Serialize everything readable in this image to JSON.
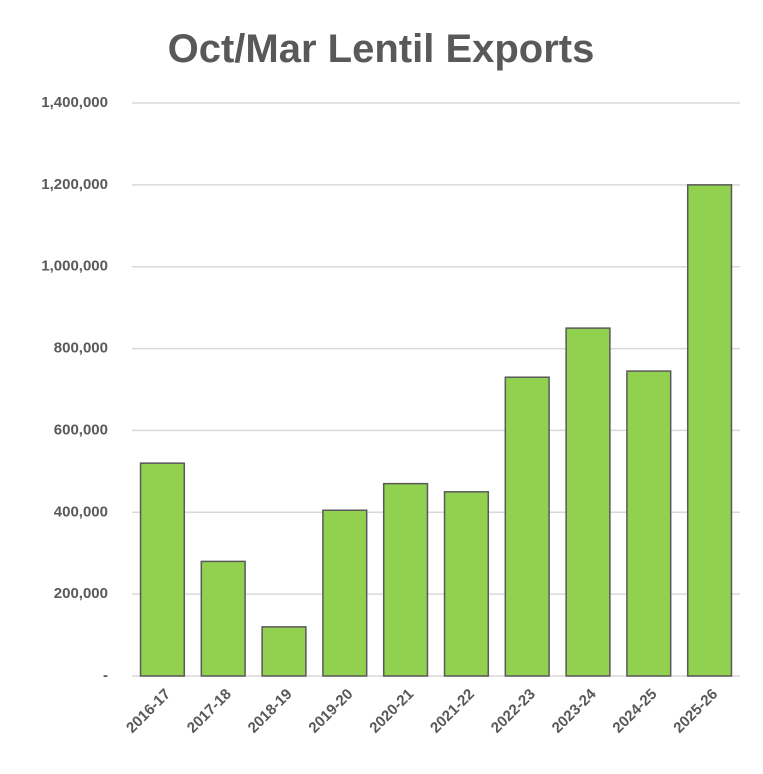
{
  "chart_data": {
    "type": "bar",
    "title": "Oct/Mar Lentil Exports",
    "categories": [
      "2016-17",
      "2017-18",
      "2018-19",
      "2019-20",
      "2020-21",
      "2021-22",
      "2022-23",
      "2023-24",
      "2024-25",
      "2025-26"
    ],
    "values": [
      520000,
      280000,
      120000,
      405000,
      470000,
      450000,
      730000,
      850000,
      745000,
      1200000
    ],
    "color": "#92d050",
    "ylim": [
      0,
      1400000
    ],
    "yticks": [
      {
        "value": 0,
        "label": "-"
      },
      {
        "value": 200000,
        "label": "200,000"
      },
      {
        "value": 400000,
        "label": "400,000"
      },
      {
        "value": 600000,
        "label": "600,000"
      },
      {
        "value": 800000,
        "label": "800,000"
      },
      {
        "value": 1000000,
        "label": "1,000,000"
      },
      {
        "value": 1200000,
        "label": "1,200,000"
      },
      {
        "value": 1400000,
        "label": "1,400,000"
      }
    ],
    "grid": true
  }
}
